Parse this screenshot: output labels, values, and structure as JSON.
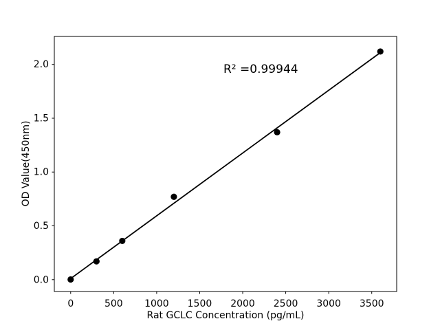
{
  "figure": {
    "background": "#ffffff",
    "foreground": "#000000"
  },
  "chart_data": {
    "type": "scatter",
    "title": "",
    "xlabel": "Rat GCLC Concentration (pg/mL)",
    "ylabel": "OD Value(450nm)",
    "annotation": "R² =0.99944",
    "x": [
      0,
      300,
      600,
      1200,
      2400,
      3600
    ],
    "y": [
      0.002,
      0.17,
      0.36,
      0.77,
      1.37,
      2.12
    ],
    "trendline": {
      "x": [
        0,
        3600
      ],
      "y": [
        0.01,
        2.11
      ]
    },
    "xlim": [
      -190,
      3790
    ],
    "ylim": [
      -0.11,
      2.26
    ],
    "xticks": {
      "values": [
        0,
        500,
        1000,
        1500,
        2000,
        2500,
        3000,
        3500
      ],
      "labels": [
        "0",
        "500",
        "1000",
        "1500",
        "2000",
        "2500",
        "3000",
        "3500"
      ]
    },
    "yticks": {
      "values": [
        0,
        0.5,
        1.0,
        1.5,
        2.0
      ],
      "labels": [
        "0.0",
        "0.5",
        "1.0",
        "1.5",
        "2.0"
      ]
    },
    "grid": false,
    "legend": null,
    "marker_color": "#000000",
    "line_color": "#000000",
    "axis_color": "#000000"
  }
}
